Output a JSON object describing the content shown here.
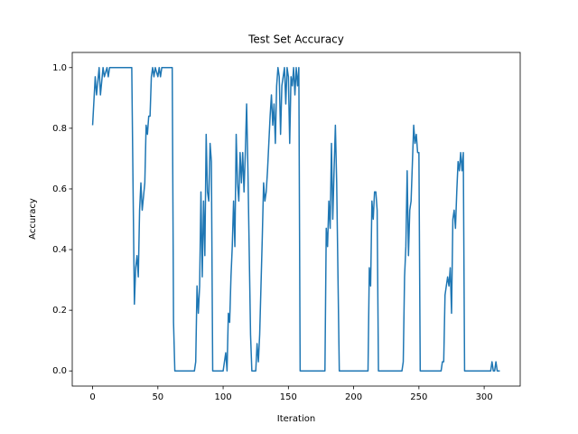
{
  "chart_data": {
    "type": "line",
    "title": "Test Set Accuracy",
    "xlabel": "Iteration",
    "ylabel": "Accuracy",
    "color": "#1f77b4",
    "x": [
      0,
      2,
      3,
      5,
      6,
      8,
      9,
      11,
      12,
      13,
      30,
      31,
      32,
      33,
      34,
      35,
      36,
      37,
      38,
      40,
      41,
      42,
      43,
      44,
      45,
      46,
      47,
      48,
      50,
      51,
      52,
      53,
      61,
      62,
      63,
      78,
      79,
      80,
      81,
      82,
      83,
      84,
      85,
      86,
      87,
      88,
      89,
      90,
      91,
      92,
      100,
      102,
      103,
      104,
      105,
      106,
      107,
      108,
      109,
      110,
      111,
      112,
      113,
      114,
      115,
      116,
      117,
      118,
      119,
      121,
      122,
      125,
      126,
      127,
      128,
      129,
      130,
      131,
      132,
      133,
      134,
      135,
      136,
      137,
      138,
      139,
      140,
      141,
      142,
      143,
      144,
      145,
      146,
      147,
      148,
      149,
      150,
      151,
      152,
      153,
      154,
      155,
      156,
      157,
      158,
      159,
      178,
      179,
      180,
      181,
      182,
      183,
      184,
      185,
      186,
      187,
      189,
      211,
      212,
      213,
      214,
      215,
      216,
      217,
      218,
      219,
      237,
      238,
      239,
      240,
      241,
      242,
      243,
      244,
      246,
      247,
      248,
      249,
      250,
      251,
      267,
      268,
      269,
      270,
      271,
      272,
      273,
      274,
      275,
      276,
      277,
      278,
      279,
      280,
      281,
      282,
      283,
      284,
      285,
      305,
      306,
      307,
      308,
      309,
      310,
      312
    ],
    "values": [
      0.81,
      0.97,
      0.91,
      1,
      0.91,
      1,
      0.97,
      1,
      0.97,
      1,
      1,
      0.6,
      0.22,
      0.34,
      0.38,
      0.31,
      0.53,
      0.62,
      0.53,
      0.62,
      0.81,
      0.78,
      0.84,
      0.84,
      0.97,
      1,
      0.97,
      1,
      0.97,
      1,
      0.97,
      1,
      1,
      0.16,
      0,
      0,
      0.03,
      0.28,
      0.19,
      0.28,
      0.59,
      0.31,
      0.56,
      0.38,
      0.78,
      0.59,
      0.56,
      0.75,
      0.69,
      0,
      0,
      0.06,
      0,
      0.19,
      0.16,
      0.31,
      0.41,
      0.56,
      0.41,
      0.78,
      0.62,
      0.56,
      0.72,
      0.62,
      0.72,
      0.59,
      0.72,
      0.88,
      0.66,
      0.12,
      0,
      0,
      0.09,
      0.03,
      0.12,
      0.28,
      0.44,
      0.62,
      0.56,
      0.59,
      0.66,
      0.75,
      0.84,
      0.91,
      0.81,
      0.88,
      0.75,
      0.94,
      1,
      0.97,
      0.78,
      0.94,
      0.97,
      1,
      0.88,
      1,
      0.97,
      0.75,
      0.97,
      0.94,
      1,
      0.91,
      1,
      0.94,
      1,
      0,
      0,
      0.47,
      0.41,
      0.56,
      0.47,
      0.75,
      0.5,
      0.66,
      0.81,
      0.62,
      0,
      0,
      0.34,
      0.28,
      0.56,
      0.5,
      0.59,
      0.59,
      0.53,
      0,
      0,
      0.03,
      0.31,
      0.41,
      0.66,
      0.38,
      0.53,
      0.56,
      0.81,
      0.75,
      0.78,
      0.72,
      0.72,
      0,
      0,
      0.03,
      0.03,
      0.25,
      0.28,
      0.31,
      0.28,
      0.34,
      0.19,
      0.5,
      0.53,
      0.47,
      0.59,
      0.69,
      0.66,
      0.72,
      0.66,
      0.72,
      0,
      0,
      0.03,
      0,
      0,
      0.03,
      0,
      0
    ],
    "xlim": [
      -15.6,
      327.6
    ],
    "ylim": [
      -0.05,
      1.05
    ],
    "xticks": [
      0,
      50,
      100,
      150,
      200,
      250,
      300
    ],
    "yticks": [
      {
        "value": 0,
        "label": "0.0"
      },
      {
        "value": 0.2,
        "label": "0.2"
      },
      {
        "value": 0.4,
        "label": "0.4"
      },
      {
        "value": 0.6,
        "label": "0.6"
      },
      {
        "value": 0.8,
        "label": "0.8"
      },
      {
        "value": 1,
        "label": "1.0"
      }
    ]
  }
}
